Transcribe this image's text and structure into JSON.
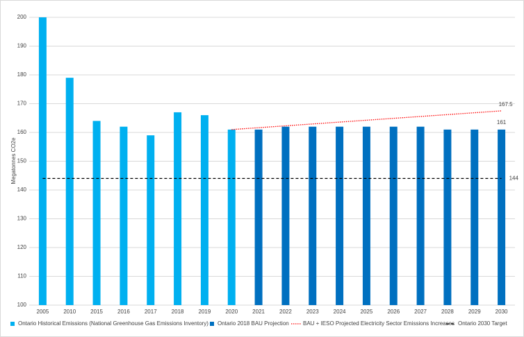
{
  "chart_data": {
    "type": "bar",
    "y_label": "Megatonnes CO2e",
    "categories": [
      "2005",
      "2010",
      "2015",
      "2016",
      "2017",
      "2018",
      "2019",
      "2020",
      "2021",
      "2022",
      "2023",
      "2024",
      "2025",
      "2026",
      "2027",
      "2028",
      "2029",
      "2030"
    ],
    "ylim": [
      100,
      200
    ],
    "yticks": [
      100,
      110,
      120,
      130,
      140,
      150,
      160,
      170,
      180,
      190,
      200
    ],
    "grid": true,
    "legend": "bottom",
    "series": [
      {
        "name": "Ontario Historical Emissions (National Greenhouse Gas Emissions Inventory)",
        "type": "bar",
        "color": "#00b0f0",
        "values": [
          200,
          179,
          164,
          162,
          159,
          167,
          166,
          161,
          null,
          null,
          null,
          null,
          null,
          null,
          null,
          null,
          null,
          null
        ]
      },
      {
        "name": "Ontario 2018 BAU Projection",
        "type": "bar",
        "color": "#0070c0",
        "label_last": true,
        "values": [
          null,
          null,
          null,
          null,
          null,
          null,
          null,
          null,
          161,
          162,
          162,
          162,
          162,
          162,
          162,
          161,
          161,
          161
        ]
      },
      {
        "name": "BAU + IESO Projected Electricity Sector Emissions Increases",
        "type": "line",
        "style": "dotted",
        "color": "#ff0000",
        "label_last": true,
        "values": [
          null,
          null,
          null,
          null,
          null,
          null,
          null,
          161,
          161.65,
          162.3,
          162.95,
          163.6,
          164.25,
          164.9,
          165.55,
          166.2,
          166.85,
          167.5
        ]
      },
      {
        "name": "Ontario 2030 Target",
        "type": "line",
        "style": "dashed",
        "color": "#000000",
        "label_last": true,
        "values": [
          144,
          144,
          144,
          144,
          144,
          144,
          144,
          144,
          144,
          144,
          144,
          144,
          144,
          144,
          144,
          144,
          144,
          144
        ]
      }
    ]
  }
}
